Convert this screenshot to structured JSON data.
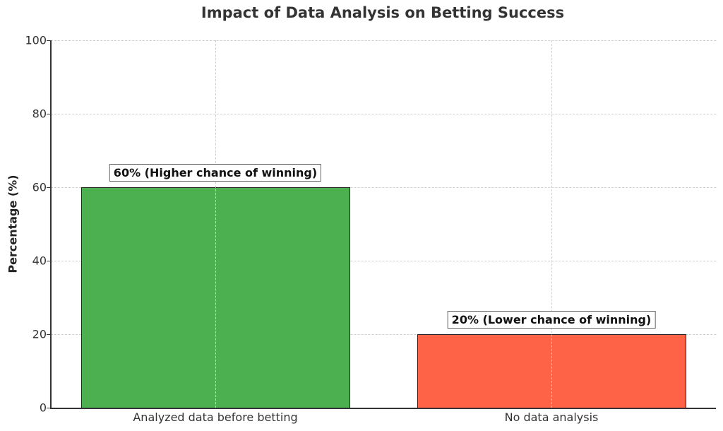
{
  "chart_data": {
    "type": "bar",
    "title": "Impact of Data Analysis on Betting Success",
    "xlabel": "",
    "ylabel": "Percentage (%)",
    "categories": [
      "Analyzed data before betting",
      "No data analysis"
    ],
    "values": [
      60,
      20
    ],
    "colors": [
      "#4caf50",
      "#ff6347"
    ],
    "annotations": [
      "60% (Higher chance of winning)",
      "20% (Lower chance of winning)"
    ],
    "ylim": [
      0,
      100
    ],
    "yticks": [
      0,
      20,
      40,
      60,
      80,
      100
    ],
    "grid": true,
    "legend": null
  }
}
